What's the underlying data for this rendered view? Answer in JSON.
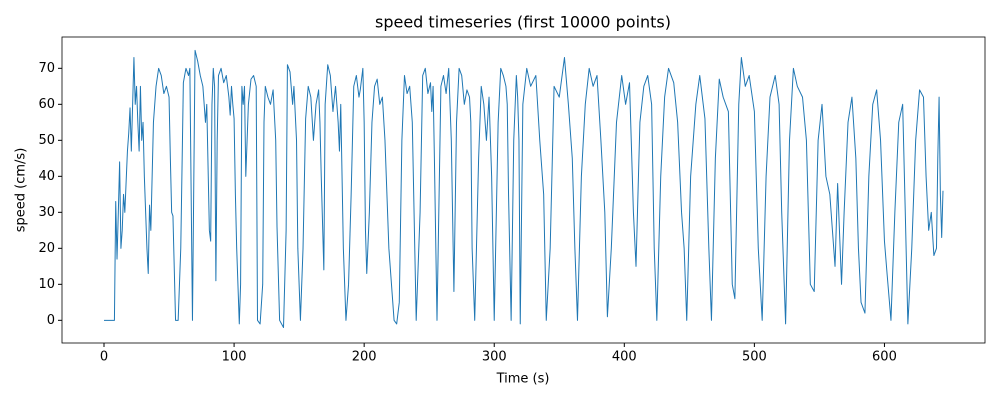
{
  "chart_data": {
    "type": "line",
    "title": "speed timeseries (first 10000 points)",
    "x_label": "Time (s)",
    "y_label": "speed (cm/s)",
    "color": "#1f77b4",
    "xlim": [
      -32.3,
      677.3
    ],
    "ylim": [
      -6.3,
      78.7
    ],
    "xticks": [
      0,
      100,
      200,
      300,
      400,
      500,
      600
    ],
    "yticks": [
      0,
      10,
      20,
      30,
      40,
      50,
      60,
      70
    ],
    "x": [
      0,
      8,
      9,
      10,
      11,
      12,
      13,
      14,
      15,
      16,
      18,
      19,
      20,
      21,
      23,
      24,
      25,
      26,
      27,
      28,
      29,
      30,
      31,
      32,
      33,
      34,
      35,
      36,
      38,
      40,
      42,
      44,
      46,
      48,
      50,
      51,
      52,
      53,
      55,
      57,
      59,
      61,
      63,
      65,
      66,
      68,
      70,
      72,
      74,
      76,
      78,
      79,
      81,
      82,
      83,
      84,
      85,
      86,
      87,
      88,
      90,
      92,
      94,
      95,
      96,
      97,
      98,
      99,
      100,
      101,
      102,
      104,
      105,
      106,
      107,
      108,
      109,
      111,
      113,
      115,
      117,
      118,
      120,
      122,
      123,
      124,
      126,
      128,
      130,
      132,
      133,
      135,
      138,
      140,
      141,
      143,
      145,
      146,
      148,
      149,
      151,
      153,
      155,
      157,
      159,
      161,
      163,
      165,
      166,
      167,
      169,
      170,
      172,
      174,
      176,
      178,
      180,
      181,
      182,
      183,
      184,
      186,
      188,
      190,
      192,
      194,
      196,
      197,
      199,
      200,
      201,
      202,
      204,
      206,
      208,
      210,
      212,
      214,
      216,
      219,
      223,
      225,
      227,
      229,
      231,
      233,
      235,
      237,
      240,
      243,
      245,
      247,
      249,
      251,
      252,
      253,
      254,
      256,
      259,
      261,
      263,
      265,
      266,
      267,
      269,
      271,
      273,
      275,
      277,
      279,
      281,
      282,
      283,
      285,
      288,
      290,
      292,
      294,
      296,
      298,
      300,
      303,
      305,
      307,
      309,
      310,
      311,
      313,
      315,
      317,
      318,
      319,
      320,
      322,
      325,
      328,
      332,
      335,
      338,
      340,
      343,
      346,
      350,
      354,
      357,
      360,
      362,
      364,
      367,
      370,
      373,
      376,
      379,
      382,
      385,
      387,
      390,
      394,
      398,
      401,
      404,
      407,
      409,
      412,
      415,
      418,
      421,
      423,
      425,
      428,
      431,
      434,
      438,
      441,
      444,
      446,
      448,
      451,
      455,
      458,
      462,
      465,
      467,
      470,
      473,
      476,
      480,
      483,
      485,
      488,
      490,
      493,
      496,
      500,
      503,
      506,
      509,
      512,
      516,
      519,
      521,
      524,
      527,
      530,
      533,
      537,
      540,
      543,
      546,
      549,
      552,
      555,
      558,
      560,
      562,
      564,
      567,
      569,
      572,
      575,
      578,
      580,
      582,
      585,
      588,
      591,
      594,
      597,
      600,
      602,
      605,
      608,
      611,
      614,
      616,
      618,
      621,
      624,
      627,
      630,
      632,
      634,
      636,
      638,
      640,
      641,
      642,
      643,
      644,
      645
    ],
    "values": [
      0,
      0,
      33,
      17,
      30,
      44,
      20,
      25,
      35,
      30,
      47,
      52,
      59,
      47,
      73,
      60,
      65,
      55,
      47,
      65,
      50,
      55,
      40,
      30,
      20,
      13,
      32,
      25,
      55,
      65,
      70,
      68,
      63,
      65,
      62,
      45,
      30,
      29,
      0,
      0,
      20,
      66,
      70,
      68,
      70,
      0,
      75,
      72,
      68,
      65,
      55,
      60,
      25,
      22,
      60,
      70,
      65,
      11,
      50,
      68,
      70,
      66,
      68,
      65,
      62,
      57,
      65,
      60,
      56,
      35,
      20,
      -1,
      10,
      65,
      60,
      65,
      40,
      60,
      67,
      68,
      65,
      0,
      -1,
      10,
      55,
      65,
      62,
      60,
      64,
      50,
      26,
      0,
      -2,
      25,
      71,
      69,
      60,
      65,
      50,
      20,
      0,
      20,
      56,
      65,
      62,
      50,
      60,
      64,
      55,
      40,
      14,
      60,
      71,
      68,
      58,
      65,
      55,
      47,
      60,
      40,
      20,
      0,
      10,
      35,
      65,
      68,
      62,
      64,
      70,
      55,
      25,
      13,
      30,
      55,
      65,
      67,
      60,
      62,
      50,
      20,
      0,
      -1,
      5,
      50,
      68,
      63,
      65,
      55,
      0,
      30,
      68,
      70,
      63,
      66,
      58,
      65,
      45,
      0,
      65,
      68,
      63,
      70,
      60,
      50,
      8,
      55,
      70,
      68,
      60,
      64,
      62,
      55,
      20,
      0,
      45,
      65,
      60,
      50,
      62,
      40,
      0,
      55,
      70,
      68,
      65,
      60,
      35,
      0,
      50,
      68,
      62,
      50,
      -1,
      60,
      70,
      65,
      68,
      50,
      35,
      0,
      20,
      65,
      62,
      73,
      60,
      45,
      20,
      0,
      40,
      60,
      70,
      65,
      68,
      50,
      30,
      1,
      20,
      55,
      68,
      60,
      66,
      30,
      15,
      55,
      65,
      68,
      60,
      20,
      0,
      40,
      62,
      70,
      66,
      55,
      30,
      20,
      0,
      40,
      60,
      68,
      56,
      20,
      0,
      45,
      67,
      62,
      58,
      10,
      6,
      60,
      73,
      65,
      68,
      58,
      20,
      0,
      40,
      62,
      68,
      60,
      30,
      -1,
      50,
      70,
      65,
      62,
      50,
      10,
      8,
      50,
      60,
      40,
      35,
      25,
      15,
      38,
      10,
      30,
      55,
      62,
      45,
      20,
      5,
      2,
      40,
      60,
      64,
      50,
      22,
      13,
      0,
      30,
      55,
      60,
      30,
      -1,
      20,
      50,
      64,
      62,
      40,
      25,
      30,
      18,
      20,
      45,
      62,
      35,
      23,
      36
    ]
  }
}
